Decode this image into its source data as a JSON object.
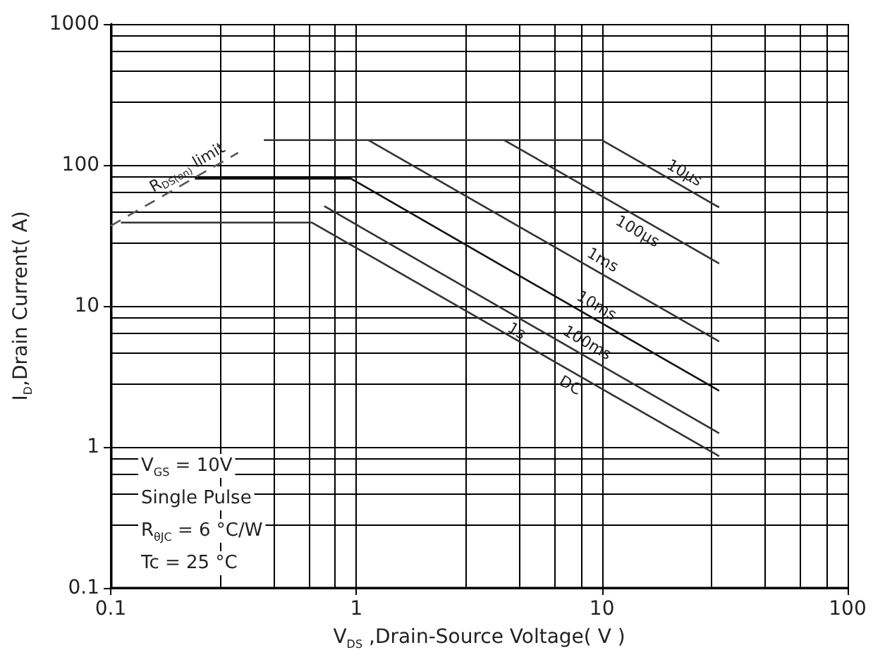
{
  "chart_data": {
    "type": "line",
    "xlabel": "V$_{DS}$ ,Drain-Source Voltage( V )",
    "ylabel": "I$_{D}$,Drain Current( A)",
    "log": "xy",
    "xlim": [
      0.1,
      100
    ],
    "ylim": [
      0.1,
      1000
    ],
    "xticks": [
      0.1,
      1,
      10,
      100
    ],
    "yticks": [
      0.1,
      1,
      10,
      100,
      1000
    ],
    "grid": true,
    "legend": false,
    "marker": "none",
    "line_style": "solid",
    "series": [
      {
        "name": "10µs",
        "color": "#333333",
        "x": [
          0.42,
          10,
          30
        ],
        "values": [
          150,
          150,
          50
        ]
      },
      {
        "name": "100µs",
        "color": "#333333",
        "x": [
          4,
          30
        ],
        "values": [
          150,
          20
        ]
      },
      {
        "name": "1ms",
        "color": "#333333",
        "x": [
          1.12,
          30
        ],
        "values": [
          150,
          5.6
        ]
      },
      {
        "name": "10ms",
        "color": "#111111",
        "x": [
          0.22,
          0.95,
          30
        ],
        "values": [
          80,
          80,
          2.5
        ]
      },
      {
        "name": "100ms",
        "color": "#333333",
        "x": [
          0.74,
          30
        ],
        "values": [
          51,
          1.25
        ]
      },
      {
        "name": "DC",
        "color": "#333333",
        "x": [
          0.11,
          0.66,
          30
        ],
        "values": [
          39,
          39,
          0.86
        ]
      },
      {
        "name": "R$_{DS(on)}$ limit",
        "color": "#555555",
        "line_style": "dashed",
        "x": [
          0.1,
          0.33
        ],
        "values": [
          37,
          122
        ]
      }
    ],
    "annotations": [
      {
        "text": "1s",
        "x": 4.8,
        "y": 5.4
      },
      "V$_{GS}$ = 10V",
      "Single Pulse",
      "R$_{θJC}$ = 6 °C/W",
      "Tc = 25 °C"
    ]
  }
}
